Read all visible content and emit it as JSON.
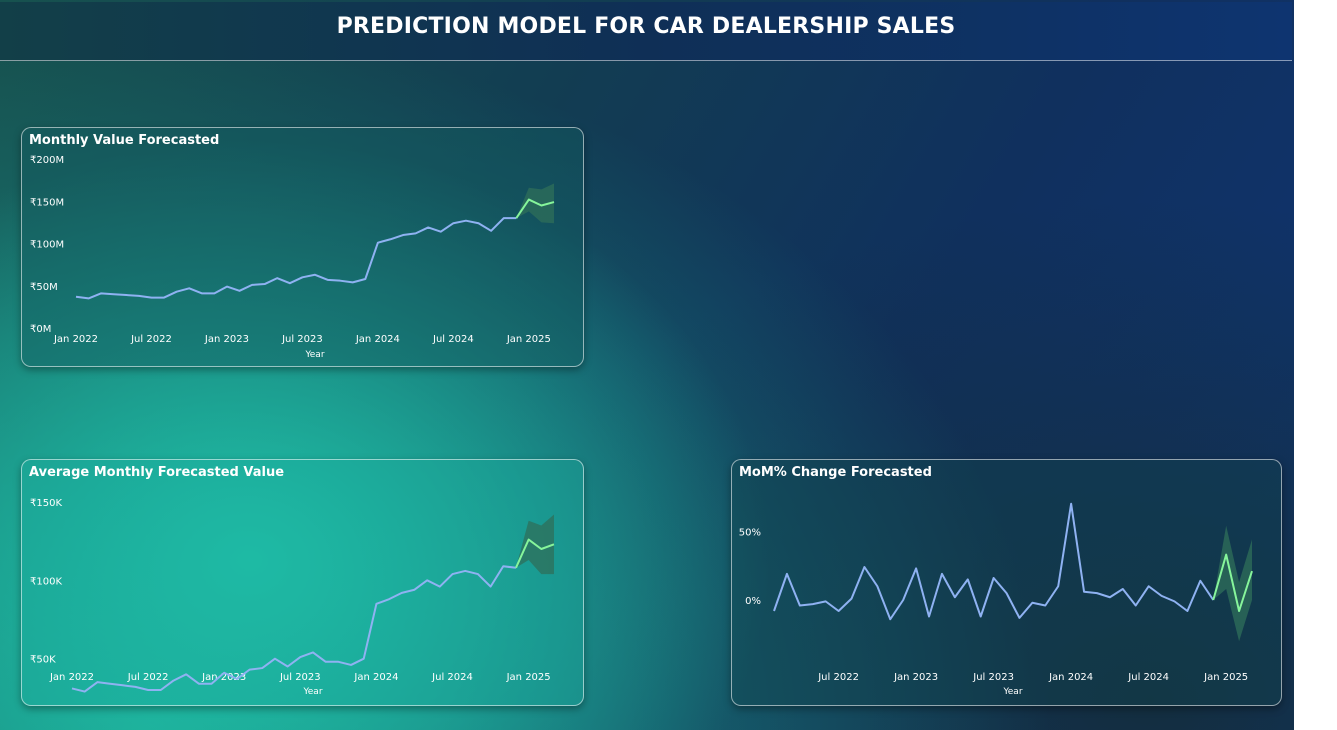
{
  "header": {
    "title": "PREDICTION MODEL FOR CAR DEALERSHIP SALES"
  },
  "colors": {
    "actual": "#8fb2f2",
    "forecast": "#86f59b",
    "band": "#2f6f5a"
  },
  "chart_data": [
    {
      "type": "line",
      "title": "Monthly Value Forecasted",
      "xlabel": "Year",
      "ylabel": "",
      "ylim": [
        0,
        200
      ],
      "yticks": [
        {
          "value": 0,
          "label": "₹0M"
        },
        {
          "value": 50,
          "label": "₹50M"
        },
        {
          "value": 100,
          "label": "₹100M"
        },
        {
          "value": 150,
          "label": "₹150M"
        },
        {
          "value": 200,
          "label": "₹200M"
        }
      ],
      "xticks": [
        {
          "index": 0,
          "label": "Jan 2022"
        },
        {
          "index": 6,
          "label": "Jul 2022"
        },
        {
          "index": 12,
          "label": "Jan 2023"
        },
        {
          "index": 18,
          "label": "Jul 2023"
        },
        {
          "index": 24,
          "label": "Jan 2024"
        },
        {
          "index": 30,
          "label": "Jul 2024"
        },
        {
          "index": 36,
          "label": "Jan 2025"
        }
      ],
      "actual": [
        37,
        35,
        41,
        40,
        39,
        38,
        36,
        36,
        43,
        47,
        41,
        41,
        49,
        44,
        51,
        52,
        59,
        53,
        60,
        63,
        57,
        56,
        54,
        58,
        101,
        105,
        110,
        112,
        119,
        114,
        124,
        127,
        124,
        115,
        130,
        130
      ],
      "forecast": [
        130,
        152,
        145,
        149
      ],
      "forecast_lower": [
        130,
        138,
        125,
        124
      ],
      "forecast_upper": [
        130,
        166,
        164,
        171
      ]
    },
    {
      "type": "line",
      "title": "Average Monthly Forecasted Value",
      "xlabel": "Year",
      "ylabel": "",
      "ylim": [
        30,
        150
      ],
      "yticks": [
        {
          "value": 50,
          "label": "₹50K"
        },
        {
          "value": 100,
          "label": "₹100K"
        },
        {
          "value": 150,
          "label": "₹150K"
        }
      ],
      "xticks": [
        {
          "index": 0,
          "label": "Jan 2022"
        },
        {
          "index": 6,
          "label": "Jul 2022"
        },
        {
          "index": 12,
          "label": "Jan 2023"
        },
        {
          "index": 18,
          "label": "Jul 2023"
        },
        {
          "index": 24,
          "label": "Jan 2024"
        },
        {
          "index": 30,
          "label": "Jul 2024"
        },
        {
          "index": 36,
          "label": "Jan 2025"
        }
      ],
      "actual": [
        31,
        29,
        35,
        34,
        33,
        32,
        30,
        30,
        36,
        40,
        34,
        34,
        41,
        37,
        43,
        44,
        50,
        45,
        51,
        54,
        48,
        48,
        46,
        50,
        85,
        88,
        92,
        94,
        100,
        96,
        104,
        106,
        104,
        96,
        109,
        108
      ],
      "forecast": [
        108,
        126,
        120,
        123
      ],
      "forecast_lower": [
        108,
        113,
        104,
        104
      ],
      "forecast_upper": [
        108,
        138,
        135,
        142
      ]
    },
    {
      "type": "line",
      "title": "MoM% Change Forecasted",
      "xlabel": "Year",
      "ylabel": "",
      "ylim": [
        -40,
        80
      ],
      "yticks": [
        {
          "value": 0,
          "label": "0%"
        },
        {
          "value": 50,
          "label": "50%"
        }
      ],
      "xticks": [
        {
          "index": 5,
          "label": "Jul 2022"
        },
        {
          "index": 11,
          "label": "Jan 2023"
        },
        {
          "index": 17,
          "label": "Jul 2023"
        },
        {
          "index": 23,
          "label": "Jan 2024"
        },
        {
          "index": 29,
          "label": "Jul 2024"
        },
        {
          "index": 35,
          "label": "Jan 2025"
        }
      ],
      "actual": [
        -8,
        19,
        -4,
        -3,
        -1,
        -8,
        1,
        24,
        10,
        -14,
        0,
        23,
        -12,
        19,
        2,
        15,
        -12,
        16,
        5,
        -13,
        -2,
        -4,
        10,
        70,
        6,
        5,
        2,
        8,
        -4,
        10,
        3,
        -1,
        -8,
        14,
        0
      ],
      "forecast": [
        0,
        33,
        -8,
        21
      ],
      "forecast_lower": [
        0,
        8,
        -30,
        0
      ],
      "forecast_upper": [
        0,
        54,
        13,
        44
      ]
    }
  ]
}
